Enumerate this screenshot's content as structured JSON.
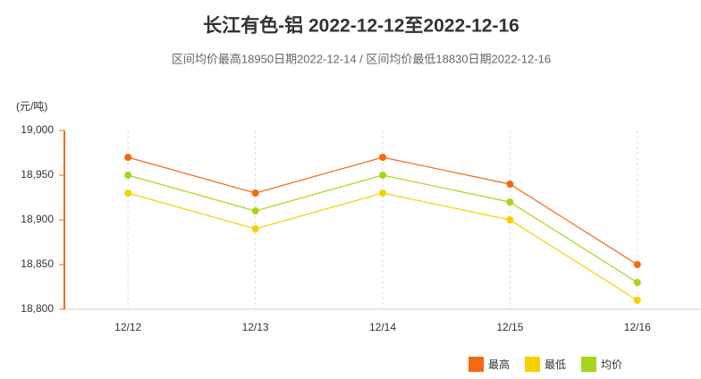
{
  "chart_data": {
    "type": "line",
    "title": "长江有色-铝 2022-12-12至2022-12-16",
    "subtitle": "区间均价最高18950日期2022-12-14 / 区间均价最低18830日期2022-12-16",
    "y_label": "(元/吨)",
    "categories": [
      "12/12",
      "12/13",
      "12/14",
      "12/15",
      "12/16"
    ],
    "series": [
      {
        "name": "最高",
        "color": "#f26a10",
        "values": [
          18970,
          18930,
          18970,
          18940,
          18850
        ]
      },
      {
        "name": "最低",
        "color": "#f7d000",
        "values": [
          18930,
          18890,
          18930,
          18900,
          18810
        ]
      },
      {
        "name": "均价",
        "color": "#a6d61a",
        "values": [
          18950,
          18910,
          18950,
          18920,
          18830
        ]
      }
    ],
    "ylim": [
      18800,
      19000
    ],
    "yticks": [
      {
        "value": 18800,
        "label": "18,800"
      },
      {
        "value": 18850,
        "label": "18,850"
      },
      {
        "value": 18900,
        "label": "18,900"
      },
      {
        "value": 18950,
        "label": "18,950"
      },
      {
        "value": 19000,
        "label": "19,000"
      }
    ],
    "grid": true
  }
}
